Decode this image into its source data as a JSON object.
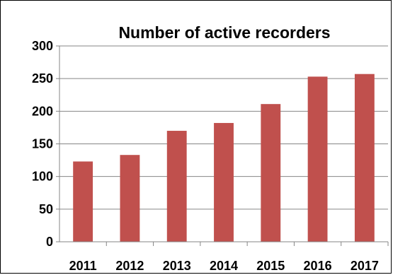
{
  "chart_data": {
    "type": "bar",
    "title": "Number of active recorders",
    "xlabel": "",
    "ylabel": "",
    "categories": [
      "2011",
      "2012",
      "2013",
      "2014",
      "2015",
      "2016",
      "2017"
    ],
    "values": [
      123,
      133,
      170,
      182,
      211,
      253,
      257
    ],
    "ylim": [
      0,
      300
    ],
    "yticks": [
      0,
      50,
      100,
      150,
      200,
      250,
      300
    ],
    "grid": true,
    "legend": "none",
    "bar_color": "#c0504d",
    "grid_color": "#868686"
  }
}
